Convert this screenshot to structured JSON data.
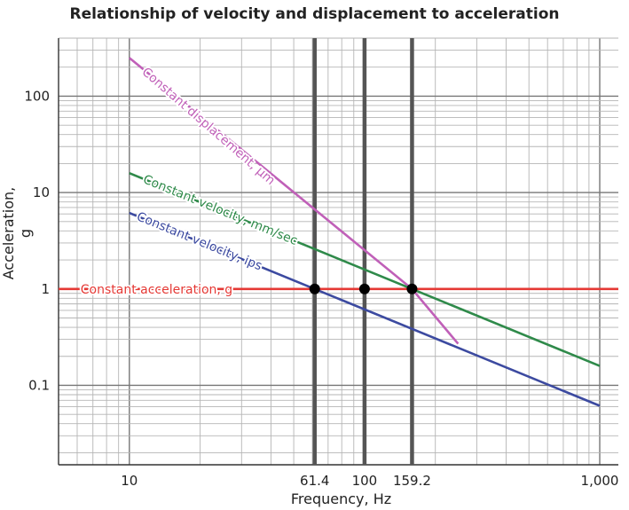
{
  "chart_data": {
    "type": "line",
    "title": "Relationship of velocity and displacement to acceleration",
    "xlabel": "Frequency, Hz",
    "ylabel": "Acceleration, g",
    "x_scale": "log",
    "y_scale": "log",
    "xlim": [
      5,
      1200
    ],
    "ylim": [
      0.015,
      400
    ],
    "x_ticks": [
      {
        "value": 10,
        "label": "10"
      },
      {
        "value": 61.4,
        "label": "61.4"
      },
      {
        "value": 100,
        "label": "100"
      },
      {
        "value": 159.2,
        "label": "159.2"
      },
      {
        "value": 1000,
        "label": "1,000"
      }
    ],
    "y_ticks": [
      {
        "value": 0.1,
        "label": "0.1"
      },
      {
        "value": 1,
        "label": "1"
      },
      {
        "value": 10,
        "label": "10"
      },
      {
        "value": 100,
        "label": "100"
      }
    ],
    "grid": true,
    "series": [
      {
        "name": "Constant displacement, μm",
        "color": "#c060b8",
        "points": [
          [
            10,
            250
          ],
          [
            159.2,
            1
          ],
          [
            250,
            0.27
          ]
        ]
      },
      {
        "name": "Constant velocity, mm/sec",
        "color": "#2f8a4a",
        "points": [
          [
            10,
            15.9
          ],
          [
            159.2,
            1
          ],
          [
            1000,
            0.159
          ]
        ]
      },
      {
        "name": "Constant velocity, ips",
        "color": "#3c4aa0",
        "points": [
          [
            10,
            6.14
          ],
          [
            61.4,
            1
          ],
          [
            1000,
            0.0614
          ]
        ]
      },
      {
        "name": "Constant acceleration, g",
        "color": "#e53935",
        "points": [
          [
            5,
            1
          ],
          [
            1200,
            1
          ]
        ]
      }
    ],
    "vertical_lines": [
      61.4,
      100,
      159.2
    ],
    "markers": [
      [
        61.4,
        1
      ],
      [
        100,
        1
      ],
      [
        159.2,
        1
      ]
    ]
  }
}
